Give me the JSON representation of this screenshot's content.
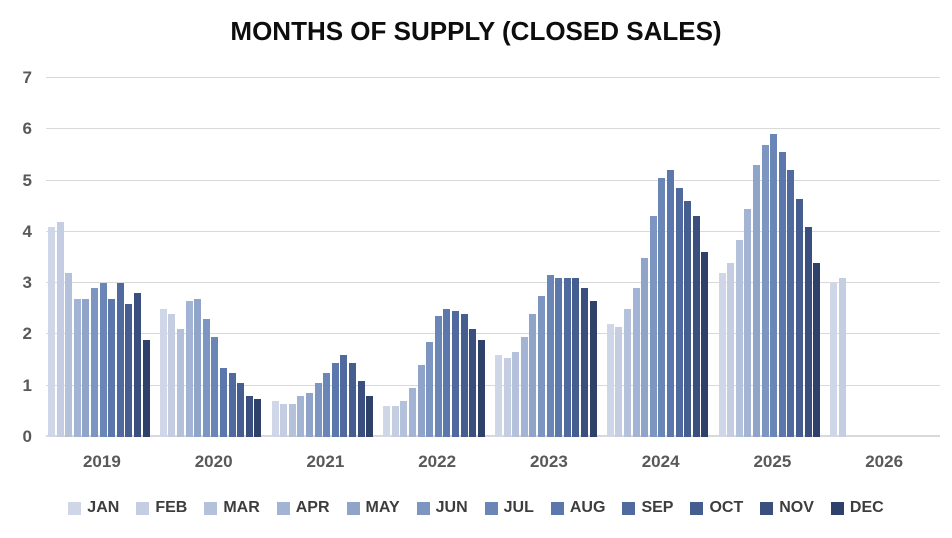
{
  "title": "MONTHS OF SUPPLY (CLOSED SALES)",
  "chart_data": {
    "type": "bar",
    "title": "MONTHS OF SUPPLY (CLOSED SALES)",
    "ylabel": "",
    "xlabel": "",
    "ylim": [
      0,
      7
    ],
    "yticks": [
      0,
      1,
      2,
      3,
      4,
      5,
      6,
      7
    ],
    "grid": true,
    "legend_position": "bottom",
    "categories": [
      "2019",
      "2020",
      "2021",
      "2022",
      "2023",
      "2024",
      "2025",
      "2026"
    ],
    "months": [
      "JAN",
      "FEB",
      "MAR",
      "APR",
      "MAY",
      "JUN",
      "JUL",
      "AUG",
      "SEP",
      "OCT",
      "NOV",
      "DEC"
    ],
    "month_colors": [
      "#CFD6E8",
      "#C4CDE2",
      "#B4C1DB",
      "#A3B3D3",
      "#90A4CA",
      "#7D95C1",
      "#6A86B7",
      "#5B77AB",
      "#50699F",
      "#465D90",
      "#3B4F7E",
      "#2F416A"
    ],
    "series": [
      {
        "year": "2019",
        "values": [
          4.1,
          4.2,
          3.2,
          2.7,
          2.7,
          2.9,
          3.0,
          2.7,
          3.0,
          2.6,
          2.8,
          1.9
        ]
      },
      {
        "year": "2020",
        "values": [
          2.5,
          2.4,
          2.1,
          2.65,
          2.7,
          2.3,
          1.95,
          1.35,
          1.25,
          1.05,
          0.8,
          0.75
        ]
      },
      {
        "year": "2021",
        "values": [
          0.7,
          0.65,
          0.65,
          0.8,
          0.85,
          1.05,
          1.25,
          1.45,
          1.6,
          1.45,
          1.1,
          0.8
        ]
      },
      {
        "year": "2022",
        "values": [
          0.6,
          0.6,
          0.7,
          0.95,
          1.4,
          1.85,
          2.35,
          2.5,
          2.45,
          2.4,
          2.1,
          1.9
        ]
      },
      {
        "year": "2023",
        "values": [
          1.6,
          1.55,
          1.65,
          1.95,
          2.4,
          2.75,
          3.15,
          3.1,
          3.1,
          3.1,
          2.9,
          2.65
        ]
      },
      {
        "year": "2024",
        "values": [
          2.2,
          2.15,
          2.5,
          2.9,
          3.5,
          4.3,
          5.05,
          5.2,
          4.85,
          4.6,
          4.3,
          3.6
        ]
      },
      {
        "year": "2025",
        "values": [
          3.2,
          3.4,
          3.85,
          4.45,
          5.3,
          5.7,
          5.9,
          5.55,
          5.2,
          4.65,
          4.1,
          3.4
        ]
      },
      {
        "year": "2026",
        "values": [
          3.0,
          3.1
        ]
      }
    ]
  },
  "colors": {
    "gridline": "#d9d9d9",
    "axis_text": "#595959",
    "legend_text": "#3d3d3d",
    "title_text": "#0d0d0d",
    "background": "#ffffff"
  }
}
